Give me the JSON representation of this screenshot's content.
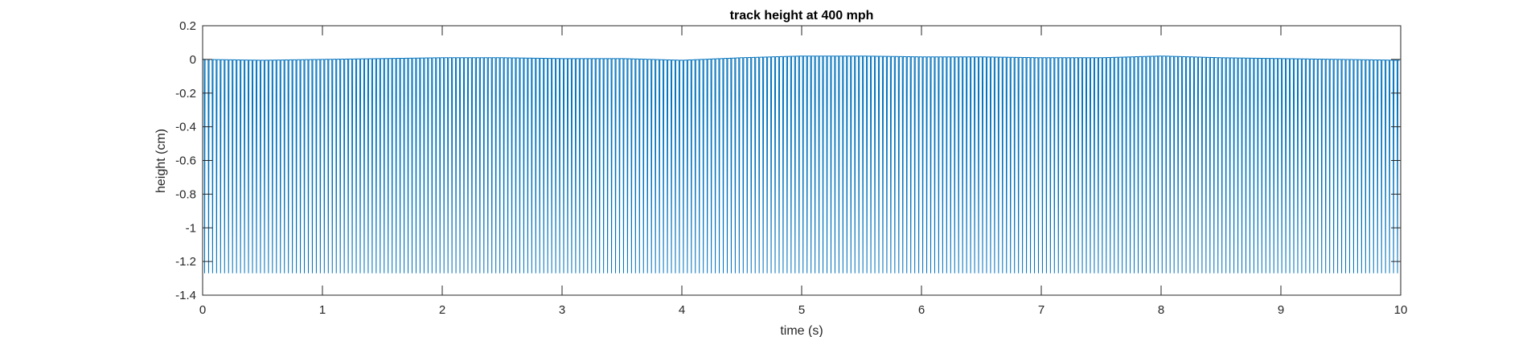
{
  "chart_data": {
    "type": "line",
    "title": "track height at 400 mph",
    "xlabel": "time (s)",
    "ylabel": "height (cm)",
    "xlim": [
      0,
      10
    ],
    "ylim": [
      -1.4,
      0.2
    ],
    "xticks": [
      0,
      1,
      2,
      3,
      4,
      5,
      6,
      7,
      8,
      9,
      10
    ],
    "xtick_labels": [
      "0",
      "1",
      "2",
      "3",
      "4",
      "5",
      "6",
      "7",
      "8",
      "9",
      "10"
    ],
    "yticks": [
      0.2,
      0,
      -0.2,
      -0.4,
      -0.6,
      -0.8,
      -1,
      -1.2,
      -1.4
    ],
    "ytick_labels": [
      "0.2",
      "0",
      "-0.2",
      "-0.4",
      "-0.6",
      "-0.8",
      "-1",
      "-1.2",
      "-1.4"
    ],
    "grid": false,
    "box": true,
    "series": [
      {
        "color": "#0072BD",
        "baseline_x": [
          0,
          0.5,
          1,
          1.5,
          2,
          2.5,
          3,
          3.5,
          4,
          4.5,
          5,
          5.5,
          6,
          6.5,
          7,
          7.5,
          8,
          8.5,
          9,
          9.5,
          10
        ],
        "baseline_y": [
          0.0,
          -0.005,
          0.0,
          0.005,
          0.01,
          0.01,
          0.005,
          0.005,
          -0.005,
          0.01,
          0.02,
          0.02,
          0.015,
          0.015,
          0.01,
          0.01,
          0.02,
          0.01,
          0.005,
          0.0,
          -0.005
        ],
        "dip_y": -1.27,
        "dip_period": 0.0333
      }
    ]
  }
}
